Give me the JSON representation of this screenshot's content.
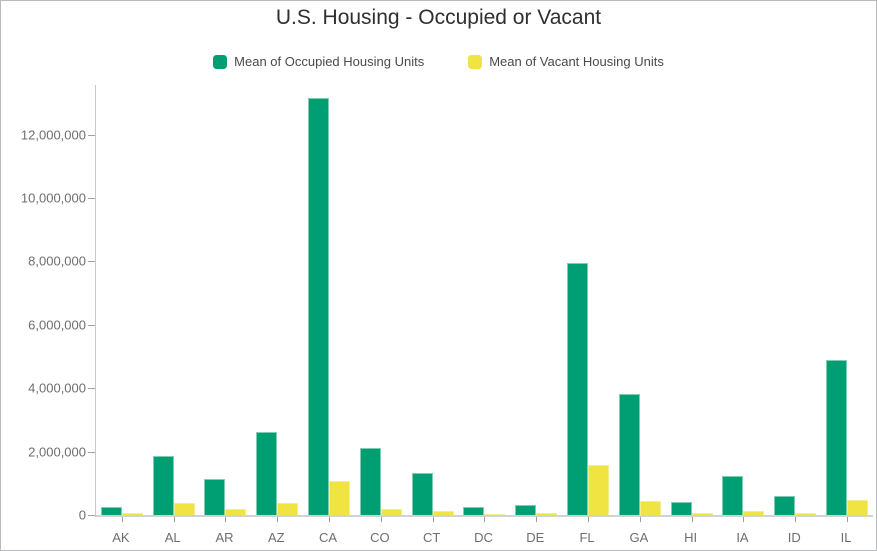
{
  "title": "U.S. Housing - Occupied or Vacant",
  "legend": {
    "items": [
      {
        "label": "Mean of Occupied Housing Units",
        "color": "#009E73"
      },
      {
        "label": "Mean of Vacant Housing Units",
        "color": "#F0E442"
      }
    ]
  },
  "chart_data": {
    "type": "bar",
    "title": "U.S. Housing - Occupied or Vacant",
    "categories": [
      "AK",
      "AL",
      "AR",
      "AZ",
      "CA",
      "CO",
      "CT",
      "DC",
      "DE",
      "FL",
      "GA",
      "HI",
      "IA",
      "ID",
      "IL"
    ],
    "series": [
      {
        "name": "Mean of Occupied Housing Units",
        "color": "#009E73",
        "values": [
          260000,
          1860000,
          1150000,
          2620000,
          13170000,
          2100000,
          1340000,
          240000,
          320000,
          7950000,
          3810000,
          420000,
          1230000,
          600000,
          4890000
        ]
      },
      {
        "name": "Mean of Vacant Housing Units",
        "color": "#F0E442",
        "values": [
          57000,
          370000,
          200000,
          370000,
          1060000,
          180000,
          115000,
          30000,
          50000,
          1570000,
          450000,
          55000,
          115000,
          62000,
          460000
        ]
      }
    ],
    "xlabel": "",
    "ylabel": "",
    "ylim": [
      0,
      13400000
    ],
    "yticks": {
      "values": [
        0,
        2000000,
        4000000,
        6000000,
        8000000,
        10000000,
        12000000
      ],
      "labels": [
        "0",
        "2,000,000",
        "4,000,000",
        "6,000,000",
        "8,000,000",
        "10,000,000",
        "12,000,000"
      ]
    },
    "grid": false,
    "legend_position": "top"
  }
}
